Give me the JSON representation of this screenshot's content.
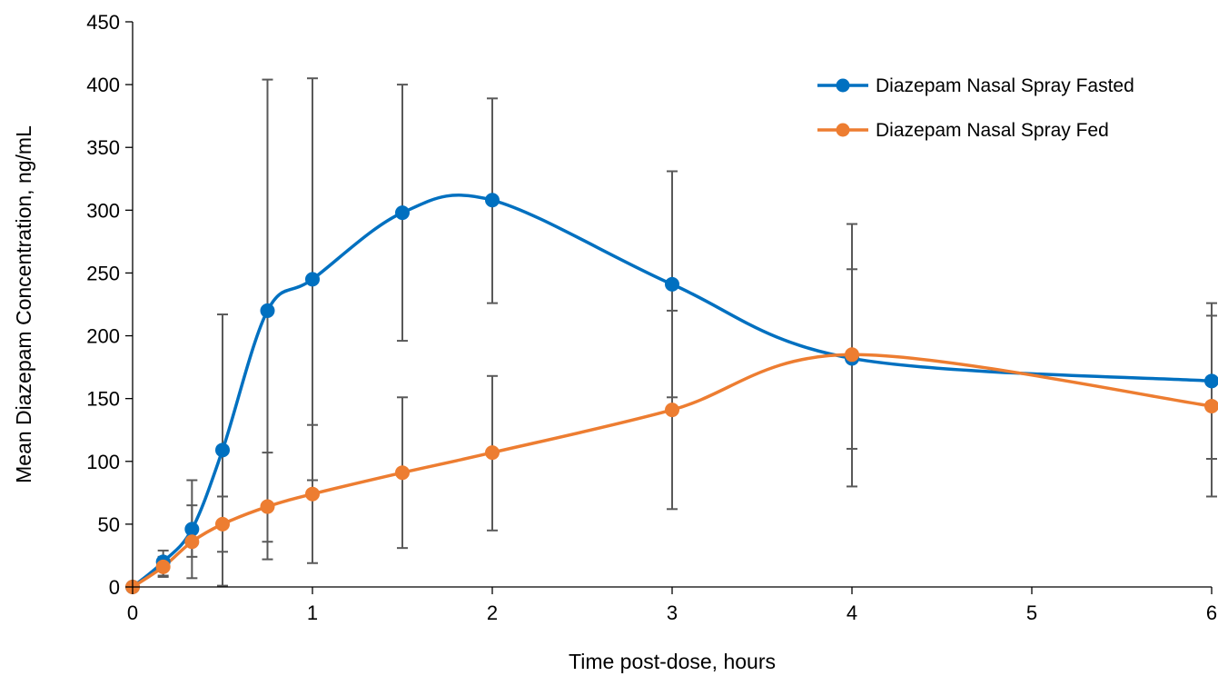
{
  "chart_data": {
    "type": "line",
    "title": "",
    "xlabel": "Time post-dose, hours",
    "ylabel": "Mean Diazepam Concentration, ng/mL",
    "xlim": [
      0,
      6
    ],
    "ylim": [
      0,
      450
    ],
    "x_ticks": [
      "0",
      "1",
      "2",
      "3",
      "4",
      "5",
      "6"
    ],
    "y_ticks": [
      "0",
      "50",
      "100",
      "150",
      "200",
      "250",
      "300",
      "350",
      "400",
      "450"
    ],
    "grid": false,
    "legend_position": "top-right",
    "error_bar_color": "#595959",
    "series": [
      {
        "name": "Diazepam Nasal Spray Fasted",
        "color": "#0070C0",
        "x": [
          0,
          0.17,
          0.33,
          0.5,
          0.75,
          1,
          1.5,
          2,
          3,
          4,
          6
        ],
        "y": [
          0,
          20,
          46,
          109,
          220,
          245,
          298,
          308,
          241,
          182,
          164
        ],
        "err_low": [
          0,
          9,
          24,
          1,
          36,
          85,
          196,
          226,
          151,
          110,
          102
        ],
        "err_high": [
          0,
          29,
          85,
          217,
          404,
          405,
          400,
          389,
          331,
          253,
          216
        ]
      },
      {
        "name": "Diazepam Nasal Spray Fed",
        "color": "#ED7D31",
        "x": [
          0,
          0.17,
          0.33,
          0.5,
          0.75,
          1,
          1.5,
          2,
          3,
          4,
          6
        ],
        "y": [
          0,
          16,
          36,
          50,
          64,
          74,
          91,
          107,
          141,
          185,
          144
        ],
        "err_low": [
          0,
          8,
          7,
          28,
          22,
          19,
          31,
          45,
          62,
          80,
          72
        ],
        "err_high": [
          0,
          24,
          65,
          72,
          107,
          129,
          151,
          168,
          220,
          289,
          226
        ]
      }
    ]
  }
}
